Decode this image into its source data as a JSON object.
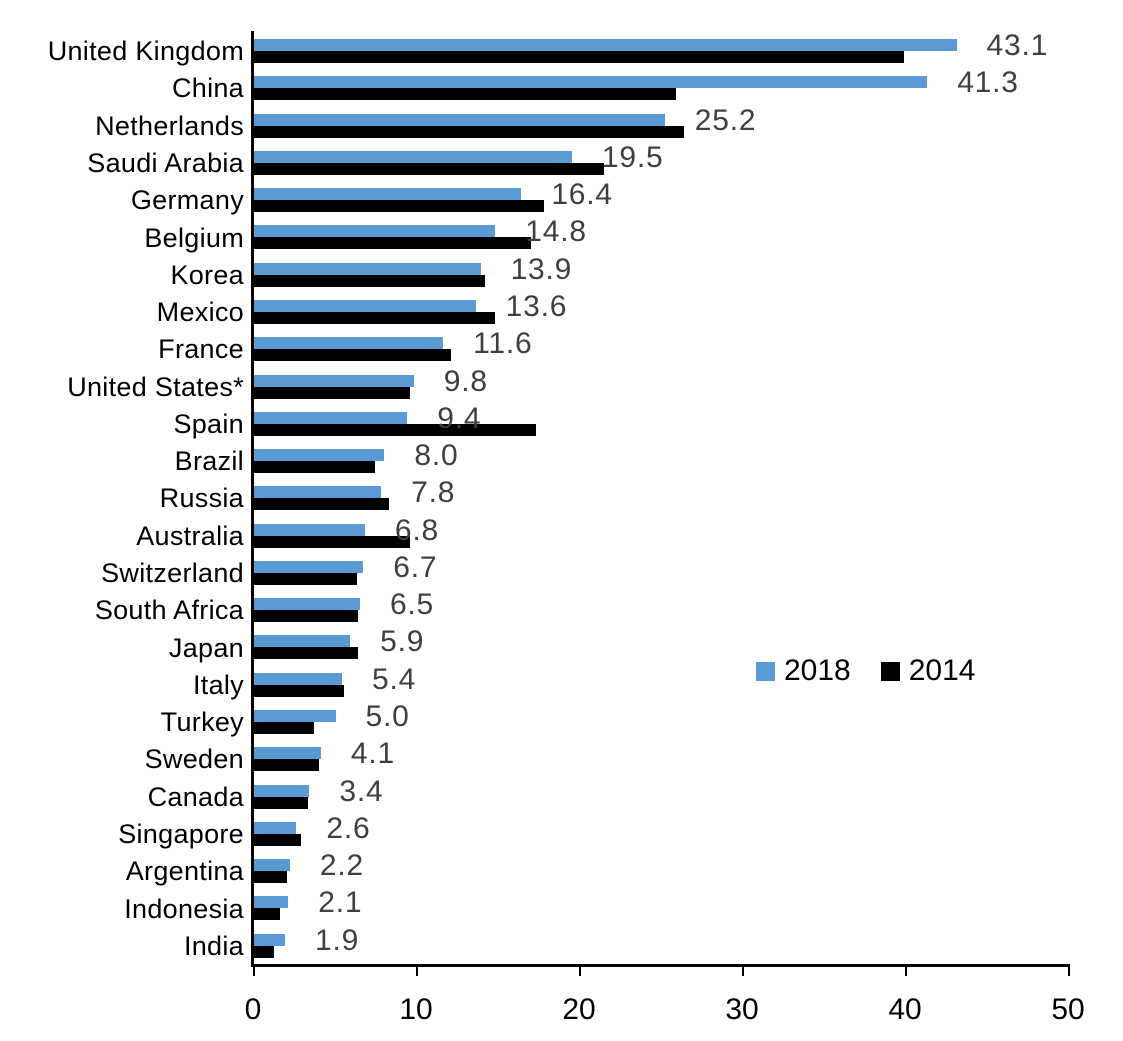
{
  "chart_data": {
    "type": "bar",
    "orientation": "horizontal",
    "title": "",
    "xlabel": "",
    "ylabel": "",
    "grid": false,
    "xlim": [
      0,
      50
    ],
    "x_ticks": [
      0,
      10,
      20,
      30,
      40,
      50
    ],
    "legend_position": "middle-right",
    "categories": [
      "United Kingdom",
      "China",
      "Netherlands",
      "Saudi Arabia",
      "Germany",
      "Belgium",
      "Korea",
      "Mexico",
      "France",
      "United States*",
      "Spain",
      "Brazil",
      "Russia",
      "Australia",
      "Switzerland",
      "South Africa",
      "Japan",
      "Italy",
      "Turkey",
      "Sweden",
      "Canada",
      "Singapore",
      "Argentina",
      "Indonesia",
      "India"
    ],
    "series": [
      {
        "name": "2018",
        "color": "#5B9BD5",
        "values": [
          43.1,
          41.3,
          25.2,
          19.5,
          16.4,
          14.8,
          13.9,
          13.6,
          11.6,
          9.8,
          9.4,
          8.0,
          7.8,
          6.8,
          6.7,
          6.5,
          5.9,
          5.4,
          5.0,
          4.1,
          3.4,
          2.6,
          2.2,
          2.1,
          1.9
        ]
      },
      {
        "name": "2014",
        "color": "#000000",
        "values": [
          39.9,
          25.9,
          26.4,
          21.5,
          17.8,
          17.0,
          14.2,
          14.8,
          12.1,
          9.6,
          17.3,
          7.4,
          8.3,
          9.6,
          6.3,
          6.4,
          6.4,
          5.5,
          3.7,
          4.0,
          3.3,
          2.9,
          2.0,
          1.6,
          1.2
        ]
      }
    ],
    "data_labels": [
      "43.1",
      "41.3",
      "25.2",
      "19.5",
      "16.4",
      "14.8",
      "13.9",
      "13.6",
      "11.6",
      "9.8",
      "9.4",
      "8.0",
      "7.8",
      "6.8",
      "6.7",
      "6.5",
      "5.9",
      "5.4",
      "5.0",
      "4.1",
      "3.4",
      "2.6",
      "2.2",
      "2.1",
      "1.9"
    ],
    "data_label_color": "#3F3F3F",
    "value_label_series": "2018"
  }
}
